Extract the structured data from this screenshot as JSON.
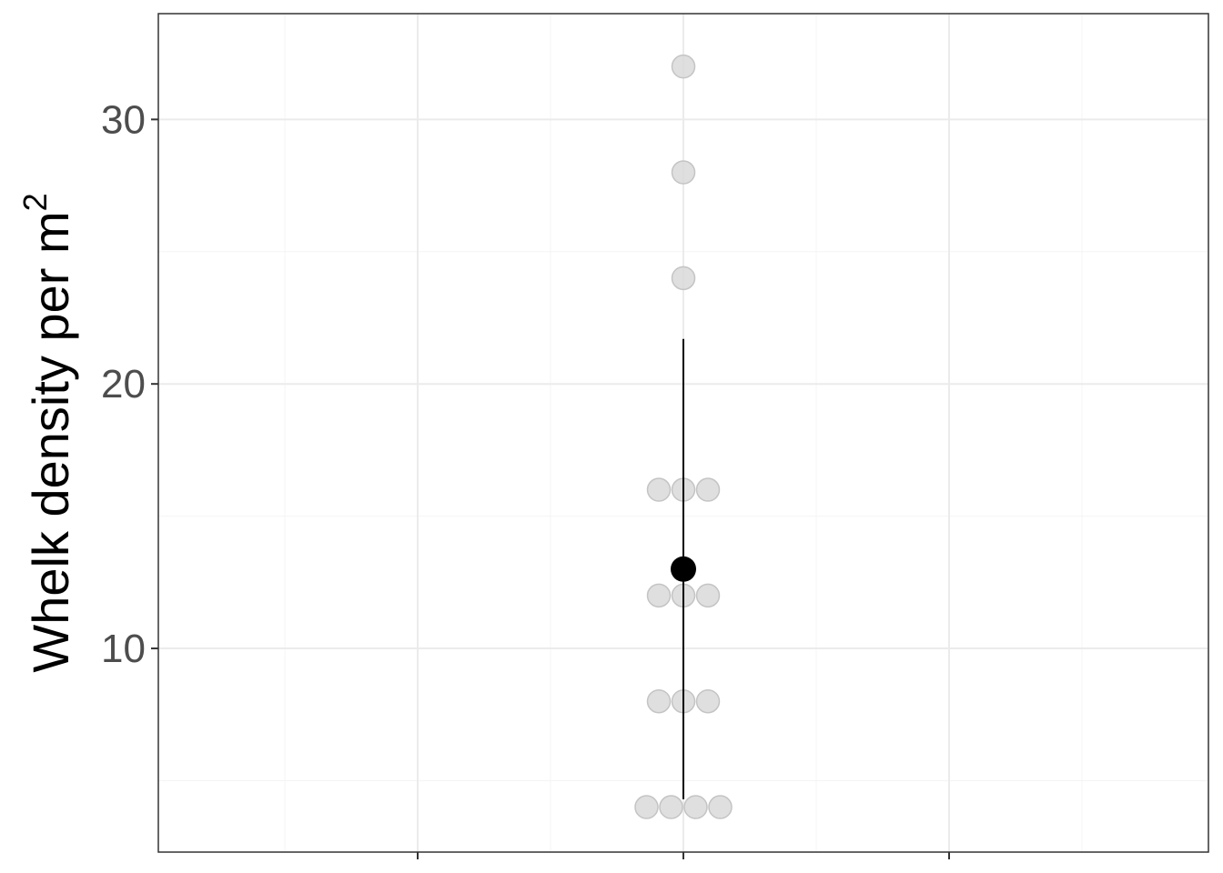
{
  "chart_data": {
    "type": "scatter",
    "title": "",
    "xlabel": "",
    "ylabel": "Whelk density per m",
    "ylabel_superscript": "2",
    "ylim": [
      2.3,
      34.0
    ],
    "y_major_ticks": [
      10,
      20,
      30
    ],
    "y_major_tick_labels": [
      "10",
      "20",
      "30"
    ],
    "y_minor_ticks": [
      5,
      15,
      25
    ],
    "x_categories": [
      ""
    ],
    "grid": true,
    "legend": "none",
    "series": [
      {
        "kind": "dotplot",
        "color": "#d9d9d9",
        "points": [
          {
            "x": "",
            "y": 4
          },
          {
            "x": "",
            "y": 4
          },
          {
            "x": "",
            "y": 4
          },
          {
            "x": "",
            "y": 4
          },
          {
            "x": "",
            "y": 8
          },
          {
            "x": "",
            "y": 8
          },
          {
            "x": "",
            "y": 8
          },
          {
            "x": "",
            "y": 12
          },
          {
            "x": "",
            "y": 12
          },
          {
            "x": "",
            "y": 12
          },
          {
            "x": "",
            "y": 16
          },
          {
            "x": "",
            "y": 16
          },
          {
            "x": "",
            "y": 16
          },
          {
            "x": "",
            "y": 24
          },
          {
            "x": "",
            "y": 28
          },
          {
            "x": "",
            "y": 32
          }
        ]
      },
      {
        "kind": "mean_with_error",
        "color": "#000000",
        "mean": 13.0,
        "lower": 4.3,
        "upper": 21.7
      }
    ]
  },
  "colors": {
    "panel_border": "#333333",
    "grid_major": "#ebebeb",
    "grid_minor": "#f4f4f4",
    "raw_points_fill": "#d9d9d9",
    "raw_points_stroke": "#c4c4c4",
    "mean_point": "#000000"
  }
}
